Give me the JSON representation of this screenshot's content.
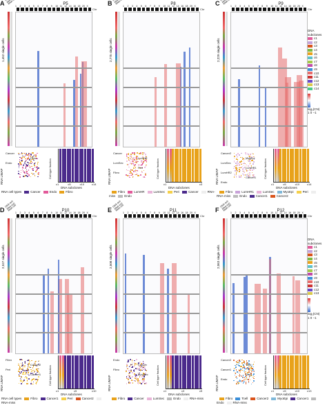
{
  "chr_labels": [
    "1",
    "2",
    "3",
    "4",
    "5",
    "6",
    "7",
    "8",
    "9",
    "10",
    "11",
    "12",
    "14",
    "16",
    "18",
    "20",
    "X"
  ],
  "chr_tag": "Chr",
  "header_annots": [
    "DNA-sub",
    "RNA-sub",
    "RNA-cell"
  ],
  "dna_subclones_title": "DNA subclones",
  "colorbar_label": "log₂(CN)",
  "colorbar_ticks": [
    "1",
    "0",
    "−1"
  ],
  "panels": [
    {
      "letter": "A",
      "title": "P5",
      "cells": "1,452 single cells",
      "umap_labels": [
        "Cancer",
        "Fibro",
        "Endo"
      ],
      "bar_ticks": [
        "c1",
        "c5",
        "c10",
        "c14"
      ],
      "legend_title": "RNA cell types",
      "legend": [
        {
          "name": "Cancer",
          "color": "#4b2a8c"
        },
        {
          "name": "Endo",
          "color": "#e25a9a"
        },
        {
          "name": "Fibro",
          "color": "#e8a21a"
        }
      ]
    },
    {
      "letter": "B",
      "title": "P8",
      "cells": "2,775 single cells",
      "umap_labels": [
        "Cancer",
        "LumHR",
        "LumSec",
        "Peri",
        "Fibro"
      ],
      "bar_ticks": [
        "c1",
        "c3"
      ],
      "legend_title": "",
      "legend": [
        {
          "name": "Fibro",
          "color": "#e8a21a"
        },
        {
          "name": "LumHR",
          "color": "#e25a9a"
        },
        {
          "name": "LumSec",
          "color": "#e9b4d8"
        },
        {
          "name": "Peri",
          "color": "#f5d04a"
        },
        {
          "name": "Cancer",
          "color": "#4b2a8c"
        },
        {
          "name": "RNA-miss",
          "color": "#eeeeee"
        },
        {
          "name": "Endo",
          "color": "#bbbbbb"
        }
      ]
    },
    {
      "letter": "C",
      "title": "P9",
      "cells": "2,229 single cells",
      "umap_labels": [
        "Cancer2",
        "MyoEpi",
        "LumSec",
        "LumHR1",
        "LumHR2",
        "Cancer1",
        "Endo"
      ],
      "bar_ticks": [
        "c1",
        "c5",
        "c10",
        "c14"
      ],
      "legend_title": "",
      "legend": [
        {
          "name": "Fibro",
          "color": "#e8a21a"
        },
        {
          "name": "LumHR1",
          "color": "#c9a3d9"
        },
        {
          "name": "LumSec",
          "color": "#e9b4d8"
        },
        {
          "name": "MyoEpi",
          "color": "#7fb8d9"
        },
        {
          "name": "Peri",
          "color": "#f5d04a"
        },
        {
          "name": "RNA-miss",
          "color": "#eeeeee"
        },
        {
          "name": "Endo",
          "color": "#bbbbbb"
        },
        {
          "name": "Cancer1",
          "color": "#4b2a8c"
        },
        {
          "name": "Cancer2",
          "color": "#d9541c"
        }
      ]
    },
    {
      "letter": "D",
      "title": "P10",
      "cells": "2,527 single cells",
      "umap_labels": [
        "Fibro",
        "Cancer2",
        "Peri",
        "Cancer1"
      ],
      "bar_ticks": [
        "c1",
        "c5",
        "c10"
      ],
      "legend_title": "RNA cell types",
      "legend": [
        {
          "name": "Fibro",
          "color": "#e8a21a"
        },
        {
          "name": "Cancer1",
          "color": "#4b2a8c"
        },
        {
          "name": "Peri",
          "color": "#f5d04a"
        },
        {
          "name": "Cancer2",
          "color": "#d9541c"
        },
        {
          "name": "RNA-miss",
          "color": "#eeeeee"
        }
      ]
    },
    {
      "letter": "E",
      "title": "P11",
      "cells": "2,508 single cells",
      "umap_labels": [
        "Endo",
        "Cancer",
        "Fibro",
        "LumSec"
      ],
      "bar_ticks": [
        "c1",
        "c3",
        "c5"
      ],
      "legend_title": "",
      "legend": [
        {
          "name": "Fibro",
          "color": "#e8a21a"
        },
        {
          "name": "Cancer",
          "color": "#4b2a8c"
        },
        {
          "name": "LumSec",
          "color": "#e9b4d8"
        },
        {
          "name": "Endo",
          "color": "#bbbbbb"
        },
        {
          "name": "RNA-miss",
          "color": "#eeeeee"
        }
      ]
    },
    {
      "letter": "F",
      "title": "P12",
      "cells": "2,063 single cells",
      "umap_labels": [
        "Cancer2",
        "Tcell",
        "Cancer1",
        "Fibro",
        "Endo"
      ],
      "bar_ticks": [
        "c1",
        "c5",
        "c10",
        "c13"
      ],
      "legend_title": "",
      "legend": [
        {
          "name": "Fibro",
          "color": "#e8a21a"
        },
        {
          "name": "Tcell",
          "color": "#3a8fd9"
        },
        {
          "name": "Cancer2",
          "color": "#d9541c"
        },
        {
          "name": "MyoEpi",
          "color": "#7fb8d9"
        },
        {
          "name": "Cancer1",
          "color": "#4b2a8c"
        },
        {
          "name": "Endo",
          "color": "#bbbbbb"
        },
        {
          "name": "RNA-miss",
          "color": "#eeeeee"
        }
      ]
    }
  ],
  "dna_legend": [
    {
      "name": "c1",
      "color": "#e25a9a"
    },
    {
      "name": "c2",
      "color": "#c3a2d9"
    },
    {
      "name": "c3",
      "color": "#d9541c"
    },
    {
      "name": "c4",
      "color": "#7fb841"
    },
    {
      "name": "c5",
      "color": "#e8a21a"
    },
    {
      "name": "c6",
      "color": "#5ec1c9"
    },
    {
      "name": "c7",
      "color": "#a3c94a"
    },
    {
      "name": "c8",
      "color": "#c14aa8"
    },
    {
      "name": "c9",
      "color": "#3a8fd9"
    },
    {
      "name": "c10",
      "color": "#e86a6a"
    },
    {
      "name": "c11",
      "color": "#c33"
    },
    {
      "name": "c12",
      "color": "#6a4ac9"
    },
    {
      "name": "c13",
      "color": "#d9c94a"
    },
    {
      "name": "c14",
      "color": "#4ac98a"
    }
  ],
  "dna_legend_f": [
    {
      "name": "c1",
      "color": "#e25a9a"
    },
    {
      "name": "c2",
      "color": "#c3a2d9"
    },
    {
      "name": "c3",
      "color": "#d9541c"
    },
    {
      "name": "c4",
      "color": "#7fb841"
    },
    {
      "name": "c5",
      "color": "#e8a21a"
    },
    {
      "name": "c6",
      "color": "#5ec1c9"
    },
    {
      "name": "c7",
      "color": "#a3c94a"
    },
    {
      "name": "c8",
      "color": "#c14aa8"
    },
    {
      "name": "c9",
      "color": "#3a8fd9"
    },
    {
      "name": "c10",
      "color": "#e86a6a"
    },
    {
      "name": "c11",
      "color": "#c33"
    },
    {
      "name": "c12",
      "color": "#6a4ac9"
    },
    {
      "name": "c13",
      "color": "#d9c94a"
    }
  ],
  "umap_axis": "RNA UMAP",
  "bar_y": "Cell type fraction",
  "bar_x": "DNA subclones"
}
